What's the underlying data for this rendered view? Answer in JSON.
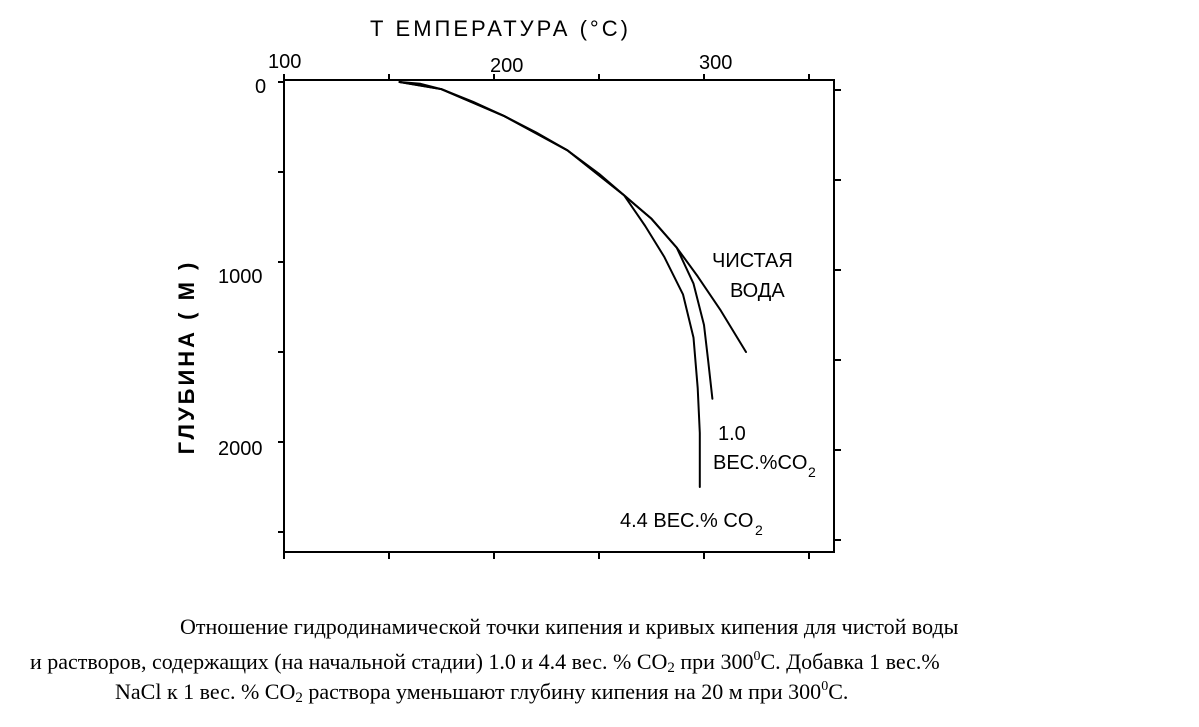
{
  "chart_data": {
    "type": "line",
    "title": "Т ЕМПЕРАТУРА (°С)",
    "ylabel": "ГЛУБИНА ( М )",
    "xlim": [
      100,
      350
    ],
    "ylim": [
      0,
      2600
    ],
    "x_ticks": [
      "100",
      "200",
      "300"
    ],
    "y_ticks": [
      "0",
      "1000",
      "2000"
    ],
    "y_inverted": true,
    "series": [
      {
        "name": "ЧИСТАЯ ВОДА",
        "label_lines": [
          "ЧИСТАЯ",
          "ВОДА"
        ],
        "x": [
          155,
          165,
          175,
          190,
          205,
          220,
          235,
          250,
          262,
          275,
          287,
          297,
          308,
          320
        ],
        "y": [
          0,
          10,
          40,
          110,
          190,
          280,
          380,
          510,
          630,
          760,
          920,
          1080,
          1270,
          1500
        ]
      },
      {
        "name": "1.0 ВЕС.%CO2",
        "label_lines": [
          "1.0",
          "ВЕС.%CO",
          "2"
        ],
        "x": [
          155,
          175,
          205,
          235,
          262,
          275,
          287,
          295,
          300,
          302,
          304
        ],
        "y": [
          0,
          40,
          190,
          380,
          630,
          760,
          920,
          1120,
          1350,
          1550,
          1760
        ]
      },
      {
        "name": "4.4 ВЕС.% CO2",
        "label_lines": [
          "4.4 ВЕС.% CO",
          "2"
        ],
        "x": [
          155,
          175,
          205,
          235,
          262,
          272,
          281,
          290,
          295,
          297,
          298,
          298
        ],
        "y": [
          0,
          40,
          190,
          380,
          630,
          800,
          970,
          1180,
          1420,
          1700,
          1950,
          2250
        ]
      }
    ]
  },
  "caption": {
    "line1": "Отношение гидродинамической точки кипения и кривых кипения для чистой воды",
    "line2_a": "и растворов, содержащих (на начальной стадии) 1.0 и 4.4 вес. % CO",
    "line2_sub": "2",
    "line2_b": " при 300",
    "line2_sup": "0",
    "line2_c": "С. Добавка 1 вес.%",
    "line3_a": "NaCl к 1 вес. % CO",
    "line3_sub": "2",
    "line3_b": " раствора уменьшают глубину кипения на 20 м при 300",
    "line3_sup": "0",
    "line3_c": "С."
  }
}
